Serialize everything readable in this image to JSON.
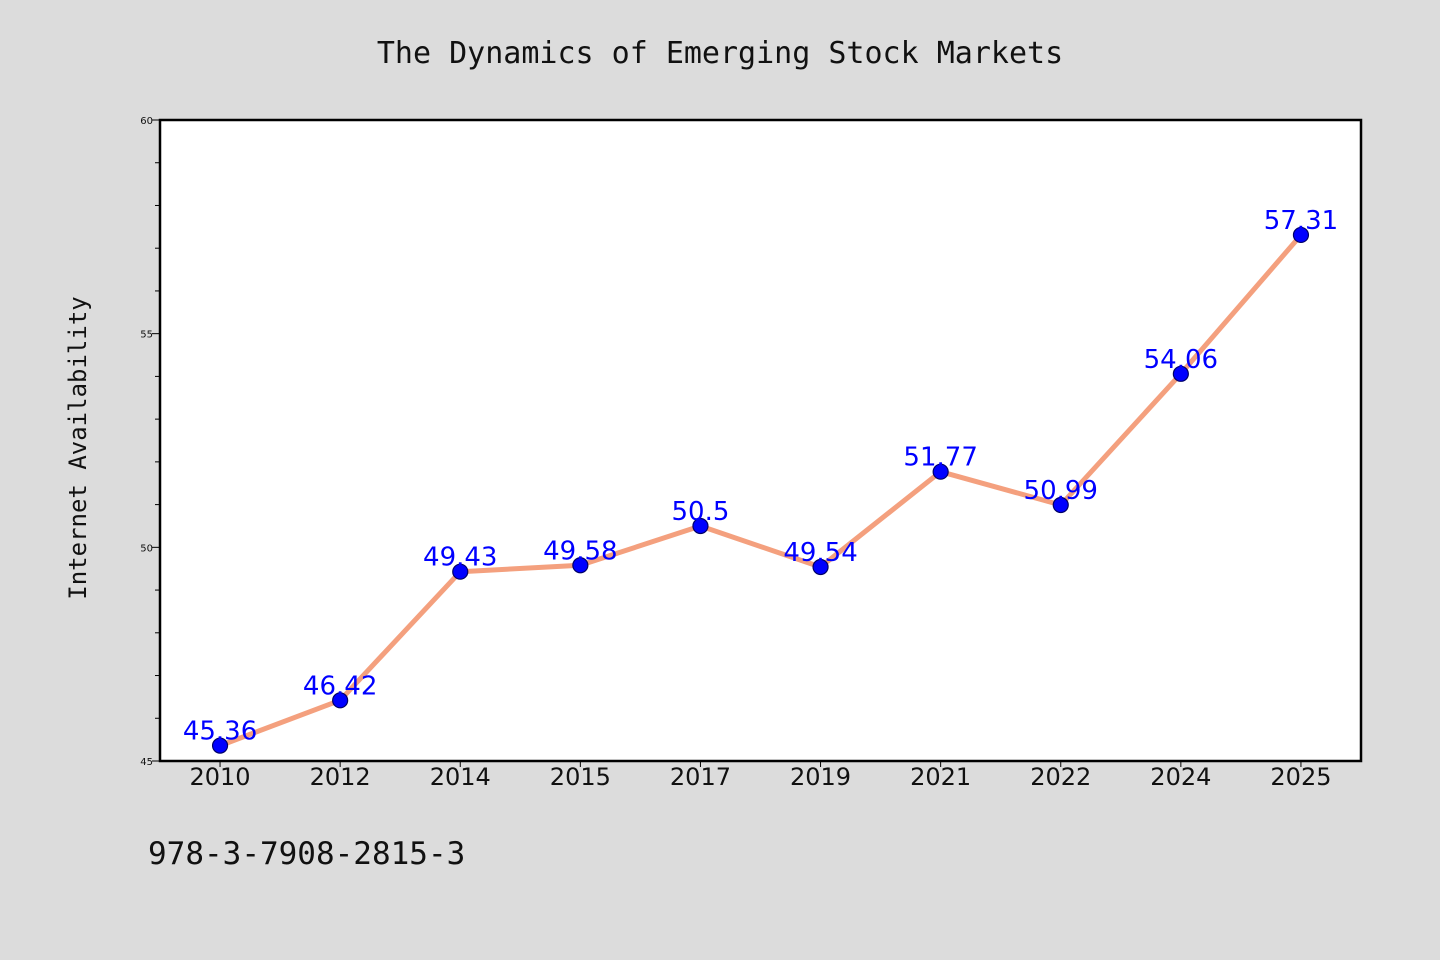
{
  "chart_data": {
    "type": "line",
    "title": "The Dynamics of Emerging Stock Markets",
    "xlabel": "",
    "ylabel": "Internet Availability",
    "categories": [
      "2010",
      "2012",
      "2014",
      "2015",
      "2017",
      "2019",
      "2021",
      "2022",
      "2024",
      "2025"
    ],
    "series": [
      {
        "values": [
          45.36,
          46.42,
          49.43,
          49.58,
          50.5,
          49.54,
          51.77,
          50.99,
          54.06,
          57.31
        ]
      }
    ],
    "data_labels": [
      "45.36",
      "46.42",
      "49.43",
      "49.58",
      "50.5",
      "49.54",
      "51.77",
      "50.99",
      "54.06",
      "57.31"
    ],
    "ylim": [
      45,
      60
    ],
    "yticks": [
      "45",
      "50",
      "55",
      "60"
    ],
    "grid": false,
    "legend": "none",
    "colors": {
      "line": "#f4a07e",
      "marker": "#0000ff",
      "marker_edge": "#000066",
      "label": "#0000ff",
      "plot_bg": "#ffffff",
      "page_bg": "#dcdcdc"
    }
  },
  "footer": {
    "isbn": "978-3-7908-2815-3"
  }
}
